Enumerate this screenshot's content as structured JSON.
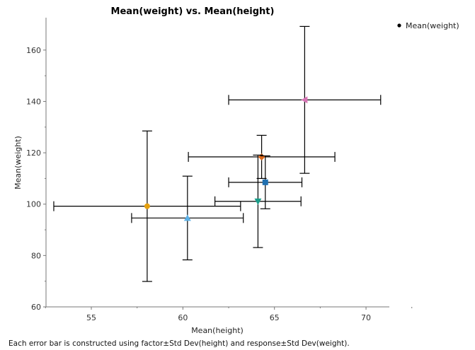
{
  "chart_data": {
    "type": "scatter",
    "title": "Mean(weight) vs. Mean(height)",
    "xlabel": "Mean(height)",
    "ylabel": "Mean(weight)",
    "xlim": [
      52.5,
      71.3
    ],
    "ylim": [
      60,
      172
    ],
    "xticks": [
      55,
      60,
      65,
      70
    ],
    "yticks": [
      60,
      80,
      100,
      120,
      140,
      160
    ],
    "grid": false,
    "legend": {
      "position": "top-right",
      "entries": [
        "Mean(weight)"
      ]
    },
    "footnote": "Each error bar is constructed using factor±Std Dev(height) and response±Std Dev(weight).",
    "points": [
      {
        "x": 58.05,
        "y": 99.2,
        "xerr": 5.1,
        "yerr": 29.3,
        "marker": "circle",
        "color": "#E5A00F"
      },
      {
        "x": 60.25,
        "y": 94.6,
        "xerr": 3.05,
        "yerr": 16.3,
        "marker": "triangle-up",
        "color": "#5BB0E6"
      },
      {
        "x": 64.3,
        "y": 118.4,
        "xerr": 4.0,
        "yerr": 8.4,
        "marker": "diamond",
        "color": "#D9661A"
      },
      {
        "x": 64.5,
        "y": 108.5,
        "xerr": 2.0,
        "yerr": 10.3,
        "marker": "square",
        "color": "#1F6FB0"
      },
      {
        "x": 64.1,
        "y": 101.1,
        "xerr": 2.35,
        "yerr": 18.0,
        "marker": "triangle-down",
        "color": "#1A9E8A"
      },
      {
        "x": 66.65,
        "y": 140.6,
        "xerr": 4.15,
        "yerr": 28.6,
        "marker": "triangle-left",
        "color": "#D774B5"
      }
    ]
  }
}
